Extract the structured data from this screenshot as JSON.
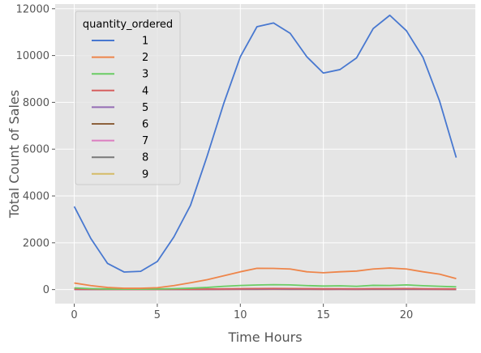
{
  "chart_data": {
    "type": "line",
    "xlabel": "Time Hours",
    "ylabel": "Total Count of Sales",
    "xlim": [
      -1.15,
      24.15
    ],
    "ylim": [
      -600,
      12200
    ],
    "xticks": [
      0,
      5,
      10,
      15,
      20
    ],
    "yticks": [
      0,
      2000,
      4000,
      6000,
      8000,
      10000,
      12000
    ],
    "grid": true,
    "legend": {
      "title": "quantity_ordered",
      "placement": "top-left"
    },
    "x": [
      0,
      1,
      2,
      3,
      4,
      5,
      6,
      7,
      8,
      9,
      10,
      11,
      12,
      13,
      14,
      15,
      16,
      17,
      18,
      19,
      20,
      21,
      22,
      23
    ],
    "series": [
      {
        "name": "1",
        "color": "#4878d0",
        "values": [
          3550,
          2180,
          1120,
          750,
          780,
          1200,
          2250,
          3600,
          5700,
          7950,
          9950,
          11230,
          11390,
          10950,
          9950,
          9250,
          9400,
          9900,
          11150,
          11720,
          11060,
          9920,
          8050,
          5640
        ]
      },
      {
        "name": "2",
        "color": "#ee854a",
        "values": [
          280,
          170,
          90,
          55,
          55,
          80,
          170,
          290,
          420,
          590,
          760,
          910,
          905,
          880,
          760,
          720,
          760,
          790,
          880,
          920,
          880,
          760,
          660,
          470
        ]
      },
      {
        "name": "3",
        "color": "#6acc64",
        "values": [
          70,
          40,
          25,
          20,
          20,
          25,
          40,
          60,
          90,
          140,
          175,
          195,
          210,
          200,
          170,
          150,
          160,
          140,
          180,
          175,
          200,
          165,
          140,
          115
        ]
      },
      {
        "name": "4",
        "color": "#d65f5f",
        "values": [
          15,
          10,
          6,
          5,
          5,
          6,
          10,
          15,
          22,
          30,
          38,
          44,
          46,
          44,
          38,
          34,
          36,
          32,
          40,
          38,
          44,
          36,
          30,
          24
        ]
      },
      {
        "name": "5",
        "color": "#956cb4",
        "values": [
          10,
          6,
          4,
          3,
          3,
          4,
          6,
          10,
          14,
          20,
          25,
          28,
          30,
          28,
          25,
          22,
          23,
          21,
          26,
          25,
          28,
          23,
          20,
          16
        ]
      },
      {
        "name": "6",
        "color": "#8c613c",
        "values": [
          20,
          5,
          3,
          2,
          2,
          3,
          5,
          8,
          12,
          15,
          18,
          20,
          22,
          20,
          18,
          16,
          17,
          15,
          19,
          18,
          20,
          17,
          15,
          12
        ]
      },
      {
        "name": "7",
        "color": "#dc7ec0",
        "values": [
          6,
          4,
          3,
          2,
          2,
          3,
          4,
          6,
          8,
          11,
          13,
          15,
          16,
          15,
          13,
          12,
          12,
          11,
          14,
          13,
          15,
          12,
          11,
          9
        ]
      },
      {
        "name": "8",
        "color": "#797979",
        "values": [
          5,
          3,
          2,
          2,
          2,
          2,
          3,
          5,
          7,
          9,
          11,
          12,
          13,
          12,
          11,
          10,
          10,
          9,
          11,
          11,
          12,
          10,
          9,
          7
        ]
      },
      {
        "name": "9",
        "color": "#d5bb67",
        "values": [
          4,
          3,
          2,
          1,
          1,
          2,
          3,
          4,
          6,
          8,
          9,
          10,
          11,
          10,
          9,
          8,
          8,
          8,
          9,
          9,
          10,
          8,
          7,
          6
        ]
      }
    ]
  }
}
